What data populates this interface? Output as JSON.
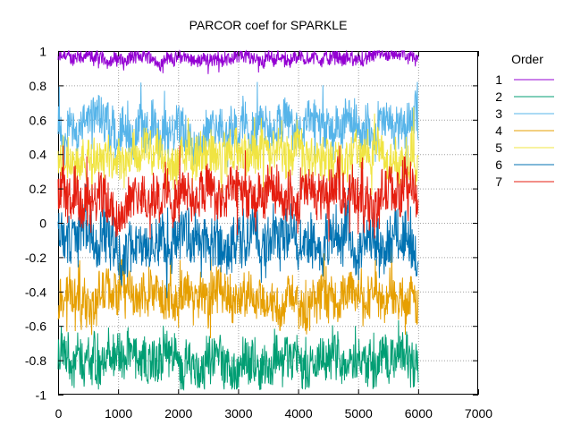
{
  "chart_data": {
    "type": "line",
    "title": "PARCOR coef for SPARKLE",
    "xlabel": "",
    "ylabel": "",
    "xlim": [
      0,
      7000
    ],
    "ylim": [
      -1,
      1
    ],
    "x_ticks": [
      0,
      1000,
      2000,
      3000,
      4000,
      5000,
      6000,
      7000
    ],
    "y_ticks": [
      1,
      0.8,
      0.6,
      0.4,
      0.2,
      0,
      -0.2,
      -0.4,
      -0.6,
      -0.8,
      -1
    ],
    "grid": true,
    "legend": {
      "title": "Order",
      "placement": "right"
    },
    "x_range_of_data": [
      0,
      6000
    ],
    "series": [
      {
        "name": "1",
        "color": "#9400d3",
        "center": 0.96,
        "spread": 0.04,
        "range": [
          0.82,
          1.0
        ]
      },
      {
        "name": "2",
        "color": "#009e73",
        "center": -0.8,
        "spread": 0.12,
        "range": [
          -0.97,
          -0.45
        ]
      },
      {
        "name": "3",
        "color": "#56b4e9",
        "center": 0.55,
        "spread": 0.12,
        "range": [
          0.3,
          0.82
        ]
      },
      {
        "name": "4",
        "color": "#e69f00",
        "center": -0.43,
        "spread": 0.12,
        "range": [
          -0.75,
          -0.15
        ]
      },
      {
        "name": "5",
        "color": "#f0e442",
        "center": 0.38,
        "spread": 0.12,
        "range": [
          0.1,
          0.72
        ]
      },
      {
        "name": "6",
        "color": "#0072b2",
        "center": -0.1,
        "spread": 0.14,
        "range": [
          -0.5,
          0.25
        ]
      },
      {
        "name": "7",
        "color": "#e51e10",
        "center": 0.15,
        "spread": 0.13,
        "range": [
          -0.2,
          0.45
        ]
      }
    ]
  }
}
